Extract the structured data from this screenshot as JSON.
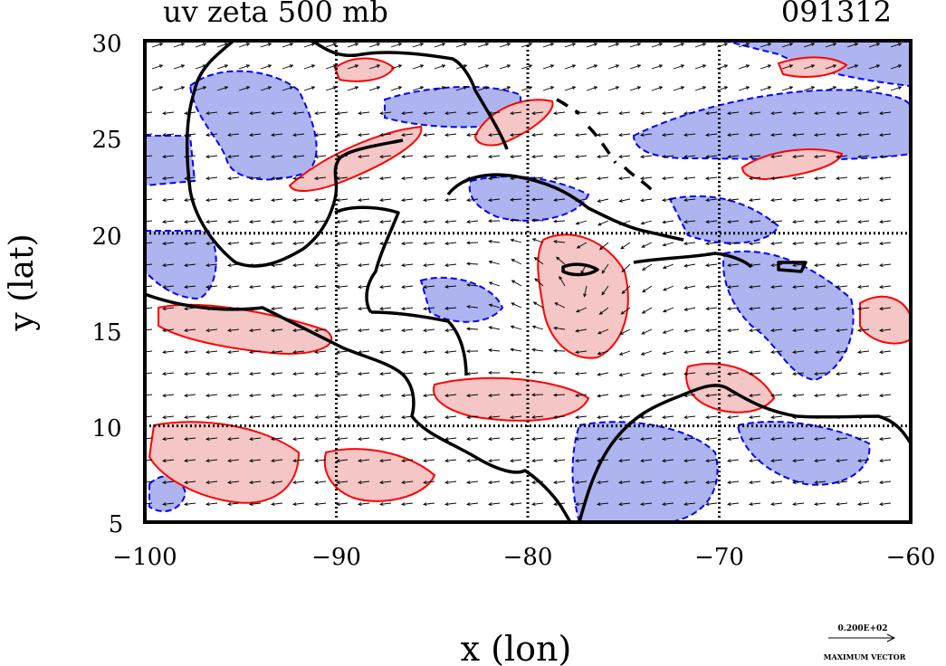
{
  "header": {
    "title": "uv zeta 500 mb",
    "date": "091312"
  },
  "axes": {
    "xlabel": "x (lon)",
    "ylabel": "y (lat)",
    "x_ticks": [
      "−100",
      "−90",
      "−80",
      "−70",
      "−60"
    ],
    "y_ticks": [
      "30",
      "25",
      "20",
      "15",
      "10",
      "5"
    ],
    "xlim": [
      -100,
      -60
    ],
    "ylim": [
      5,
      30
    ]
  },
  "legend": {
    "vector_value": "0.200E+02",
    "vector_caption": "MAXIMUM VECTOR"
  },
  "colors": {
    "positive_vorticity_fill": "#f4c6c6",
    "positive_vorticity_line": "#ff0000",
    "negative_vorticity_fill": "#aeb4f0",
    "negative_vorticity_line": "#0000ff",
    "coastline": "#000000",
    "wind_vectors": "#000000"
  },
  "map": {
    "grid_lines": "dotted at 10 deg",
    "field": "relative vorticity (zeta) shaded, wind vectors (u,v)",
    "level": "500 mb"
  }
}
